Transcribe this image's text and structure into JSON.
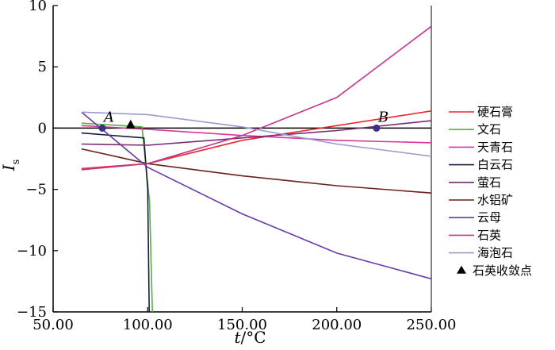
{
  "chart_data": {
    "type": "line",
    "xlabel_italic": "t",
    "xlabel_unit": "/°C",
    "ylabel_main": "I",
    "ylabel_sub": "s",
    "xlim": [
      50,
      250
    ],
    "ylim": [
      -15,
      10
    ],
    "x_ticks": [
      50,
      100,
      150,
      200,
      250
    ],
    "x_tick_labels": [
      "50.00",
      "100.00",
      "150.00",
      "200.00",
      "250.00"
    ],
    "y_ticks": [
      -15,
      -10,
      -5,
      0,
      5,
      10
    ],
    "y_tick_labels": [
      "−15",
      "−10",
      "−5",
      "0",
      "5",
      "10"
    ],
    "grid": false,
    "legend_position": "right",
    "zero_line": true,
    "series": [
      {
        "name": "硬石膏",
        "color": "#e8292b",
        "x": [
          65,
          100,
          150,
          200,
          250
        ],
        "y": [
          -3.3,
          -2.9,
          -1.0,
          0.2,
          1.4
        ]
      },
      {
        "name": "文石",
        "color": "#4db33d",
        "x": [
          65,
          97,
          101,
          102.5
        ],
        "y": [
          0.4,
          0.1,
          -6,
          -15
        ]
      },
      {
        "name": "天青石",
        "color": "#d6389a",
        "x": [
          65,
          100,
          150,
          200,
          250
        ],
        "y": [
          0.2,
          -0.1,
          -0.6,
          -1.0,
          -1.2
        ]
      },
      {
        "name": "白云石",
        "color": "#1a1a3c",
        "x": [
          65,
          98,
          100,
          100.8
        ],
        "y": [
          -0.4,
          -0.8,
          -5,
          -15
        ]
      },
      {
        "name": "萤石",
        "color": "#7a2a72",
        "x": [
          65,
          100,
          150,
          200,
          250
        ],
        "y": [
          -1.3,
          -1.4,
          -0.8,
          -0.2,
          0.6
        ]
      },
      {
        "name": "水铝矿",
        "color": "#6b1f1a",
        "x": [
          65,
          100,
          150,
          200,
          250
        ],
        "y": [
          -1.7,
          -2.9,
          -3.9,
          -4.7,
          -5.3
        ]
      },
      {
        "name": "云母",
        "color": "#6a3aa8",
        "x": [
          65,
          100,
          150,
          200,
          250
        ],
        "y": [
          1.3,
          -3.2,
          -7.0,
          -10.2,
          -12.3
        ]
      },
      {
        "name": "石英",
        "color": "#c6348c",
        "x": [
          65,
          100,
          150,
          200,
          250
        ],
        "y": [
          -3.4,
          -2.9,
          -0.6,
          2.5,
          8.3
        ]
      },
      {
        "name": "海泡石",
        "color": "#9a9ad0",
        "x": [
          65,
          100,
          150,
          200,
          250
        ],
        "y": [
          1.3,
          1.1,
          0.1,
          -1.3,
          -2.3
        ]
      }
    ],
    "annotations": [
      {
        "label": "A",
        "x": 76,
        "y": 0
      },
      {
        "label": "B",
        "x": 221,
        "y": 0
      }
    ],
    "convergence_point": {
      "name": "石英收敛点",
      "x": 91,
      "y": 0.1
    }
  }
}
